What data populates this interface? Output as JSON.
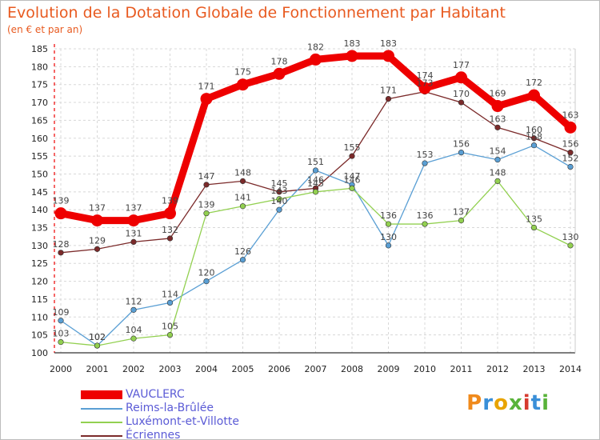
{
  "header": {
    "title": "Evolution de la Dotation Globale de Fonctionnement par Habitant",
    "subtitle": "(en € et par an)"
  },
  "logo": {
    "letters": [
      "P",
      "r",
      "o",
      "x",
      "i",
      "t",
      "i"
    ],
    "colors": [
      "#f08a1c",
      "#3a8fd8",
      "#e8a400",
      "#59b33a",
      "#d63b2f",
      "#3a8fd8",
      "#59b33a"
    ]
  },
  "chart_data": {
    "type": "line",
    "title": "Evolution de la Dotation Globale de Fonctionnement par Habitant",
    "subtitle": "(en € et par an)",
    "x": [
      "2000",
      "2001",
      "2002",
      "2003",
      "2004",
      "2005",
      "2006",
      "2007",
      "2008",
      "2009",
      "2010",
      "2011",
      "2012",
      "2013",
      "2014"
    ],
    "ylim": [
      100,
      185
    ],
    "yticks": [
      100,
      105,
      110,
      115,
      120,
      125,
      130,
      135,
      140,
      145,
      150,
      155,
      160,
      165,
      170,
      175,
      180,
      185
    ],
    "grid": true,
    "legend_position": "bottom-left",
    "series": [
      {
        "name": "VAUCLERC",
        "color": "#ee0000",
        "values": [
          139,
          137,
          137,
          139,
          171,
          175,
          178,
          182,
          183,
          183,
          174,
          177,
          169,
          172,
          163
        ]
      },
      {
        "name": "Reims-la-Brûlée",
        "color": "#5a9fd4",
        "values": [
          109,
          102,
          112,
          114,
          120,
          126,
          140,
          151,
          147,
          130,
          153,
          156,
          154,
          158,
          152
        ]
      },
      {
        "name": "Luxémont-et-Villotte",
        "color": "#92d050",
        "values": [
          103,
          102,
          104,
          105,
          139,
          141,
          143,
          145,
          146,
          136,
          136,
          137,
          148,
          135,
          130
        ]
      },
      {
        "name": "Écriennes",
        "color": "#7b2a2a",
        "values": [
          128,
          129,
          131,
          132,
          147,
          148,
          145,
          146,
          155,
          171,
          173,
          170,
          163,
          160,
          156
        ]
      }
    ]
  }
}
